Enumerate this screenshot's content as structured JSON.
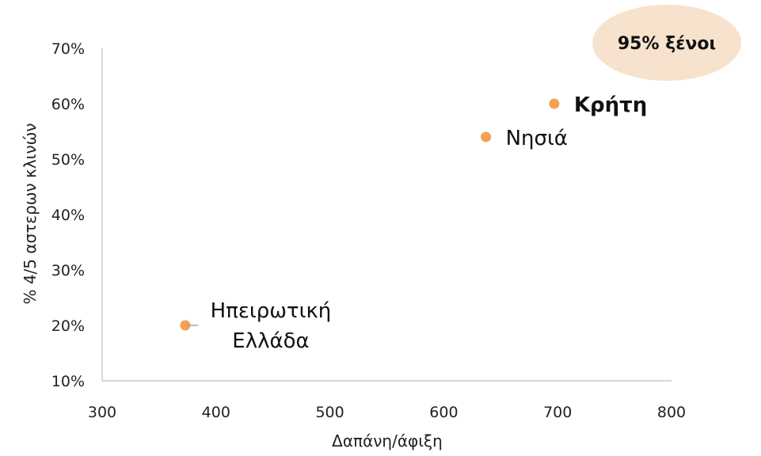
{
  "chart_data": {
    "type": "scatter",
    "title": "",
    "xlabel": "Δαπάνη/άφιξη",
    "ylabel": "% 4/5 αστερων κλινών",
    "xlim": [
      300,
      800
    ],
    "ylim": [
      0.1,
      0.7
    ],
    "x_ticks": [
      300,
      400,
      500,
      600,
      700,
      800
    ],
    "x_tick_labels": [
      "300",
      "400",
      "500",
      "600",
      "700",
      "800"
    ],
    "y_ticks": [
      0.1,
      0.2,
      0.3,
      0.4,
      0.5,
      0.6,
      0.7
    ],
    "y_tick_labels": [
      "10%",
      "20%",
      "30%",
      "40%",
      "50%",
      "60%",
      "70%"
    ],
    "grid": false,
    "point_color": "#F4A150",
    "points": [
      {
        "label_lines": [
          "Ηπειρωτική",
          "Ελλάδα"
        ],
        "x": 373,
        "y": 0.2,
        "bold": false,
        "label_position": "right-with-leader"
      },
      {
        "label_lines": [
          "Νησιά"
        ],
        "x": 637,
        "y": 0.54,
        "bold": false,
        "label_position": "right"
      },
      {
        "label_lines": [
          "Κρήτη"
        ],
        "x": 697,
        "y": 0.6,
        "bold": true,
        "label_position": "right"
      }
    ],
    "annotation": {
      "text": "95% ξένοι",
      "fill": "#F7E2CD",
      "placement": "top-right"
    }
  }
}
